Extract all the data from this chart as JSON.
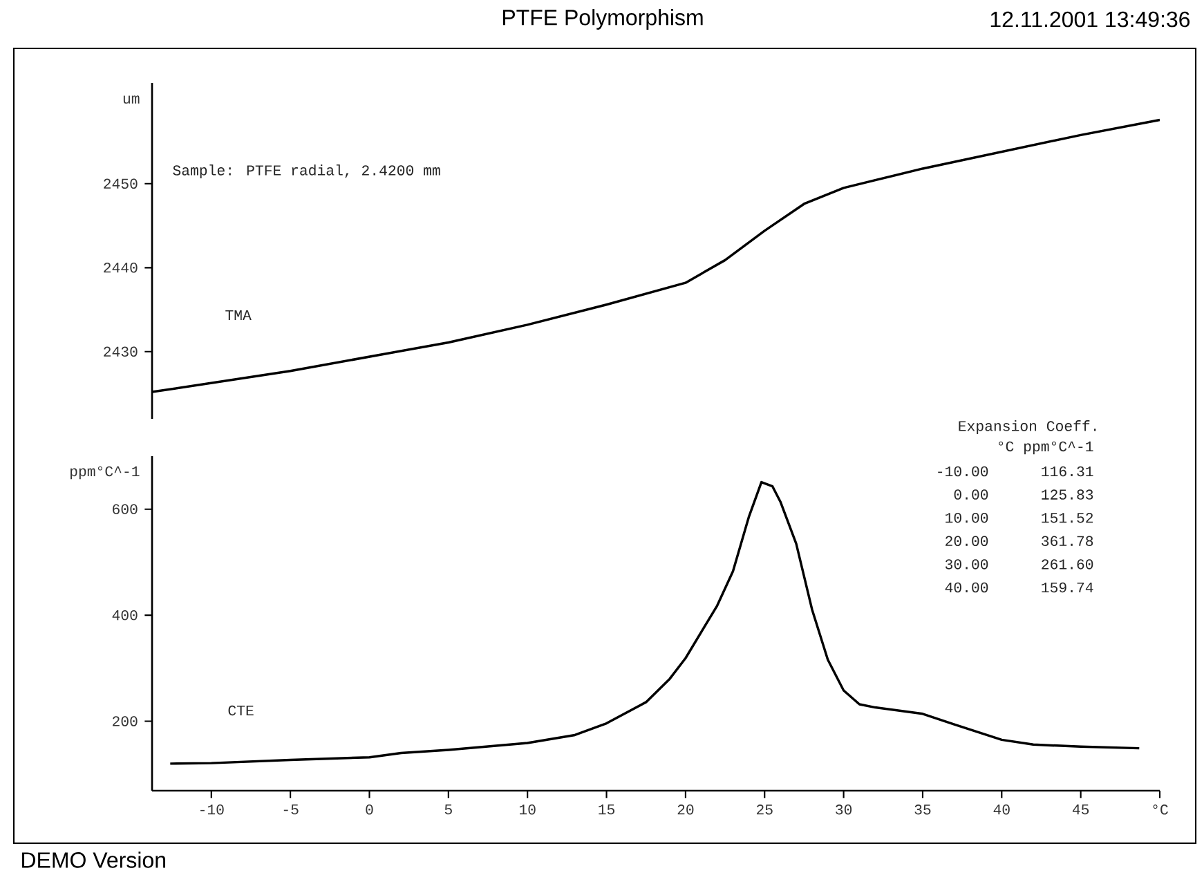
{
  "chart_data": [
    {
      "type": "line",
      "title": "PTFE Polymorphism",
      "subtitle": "12.11.2001 13:49:36",
      "ylabel": "um",
      "x": [
        -13.75,
        -5,
        0,
        5,
        10,
        15,
        20,
        22.5,
        25,
        27.5,
        30,
        35,
        40,
        45,
        50
      ],
      "values": [
        2425.2,
        2427.7,
        2429.4,
        2431.1,
        2433.2,
        2435.6,
        2438.2,
        2440.9,
        2444.4,
        2447.6,
        2449.5,
        2451.8,
        2453.8,
        2455.8,
        2457.6
      ],
      "color": "#000000",
      "xlim": [
        -13.75,
        50
      ],
      "ylim": [
        2422,
        2462
      ],
      "yticks": [
        2430,
        2440,
        2450
      ],
      "tick_labels": "y",
      "annotations": [
        "Sample: PTFE radial, 2.4200 mm",
        "TMA"
      ]
    },
    {
      "type": "line",
      "ylabel": "ppm°C^-1",
      "x": [
        -12.6,
        -10,
        -5,
        0,
        2,
        5,
        10,
        13,
        15,
        17.5,
        19,
        20,
        22,
        23,
        24,
        24.8,
        25.5,
        26,
        27,
        28,
        29,
        30,
        31,
        32,
        35,
        37,
        40,
        42,
        45,
        48.7
      ],
      "values": [
        120,
        121,
        127,
        132,
        140,
        146,
        159,
        174,
        196,
        236,
        280,
        319,
        418,
        483,
        585,
        651,
        643,
        614,
        535,
        411,
        316,
        258,
        232,
        226,
        214,
        194,
        165,
        156,
        152,
        149
      ],
      "color": "#000000",
      "xlim": [
        -13.75,
        50
      ],
      "ylim": [
        69,
        700
      ],
      "yticks": [
        200,
        400,
        600
      ],
      "xticks": [
        -10,
        -5,
        0,
        5,
        10,
        15,
        20,
        25,
        30,
        35,
        40,
        45,
        {
          "value": 50,
          "label": "°C"
        }
      ],
      "annotations": [
        "CTE",
        "Expansion Coeff.",
        "°C ppm°C^-1",
        "-10.00",
        "116.31",
        "0.00",
        "125.83",
        "10.00",
        "151.52",
        "20.00",
        "361.78",
        "30.00",
        "261.60",
        "40.00",
        "159.74",
        "DEMO Version"
      ]
    }
  ]
}
